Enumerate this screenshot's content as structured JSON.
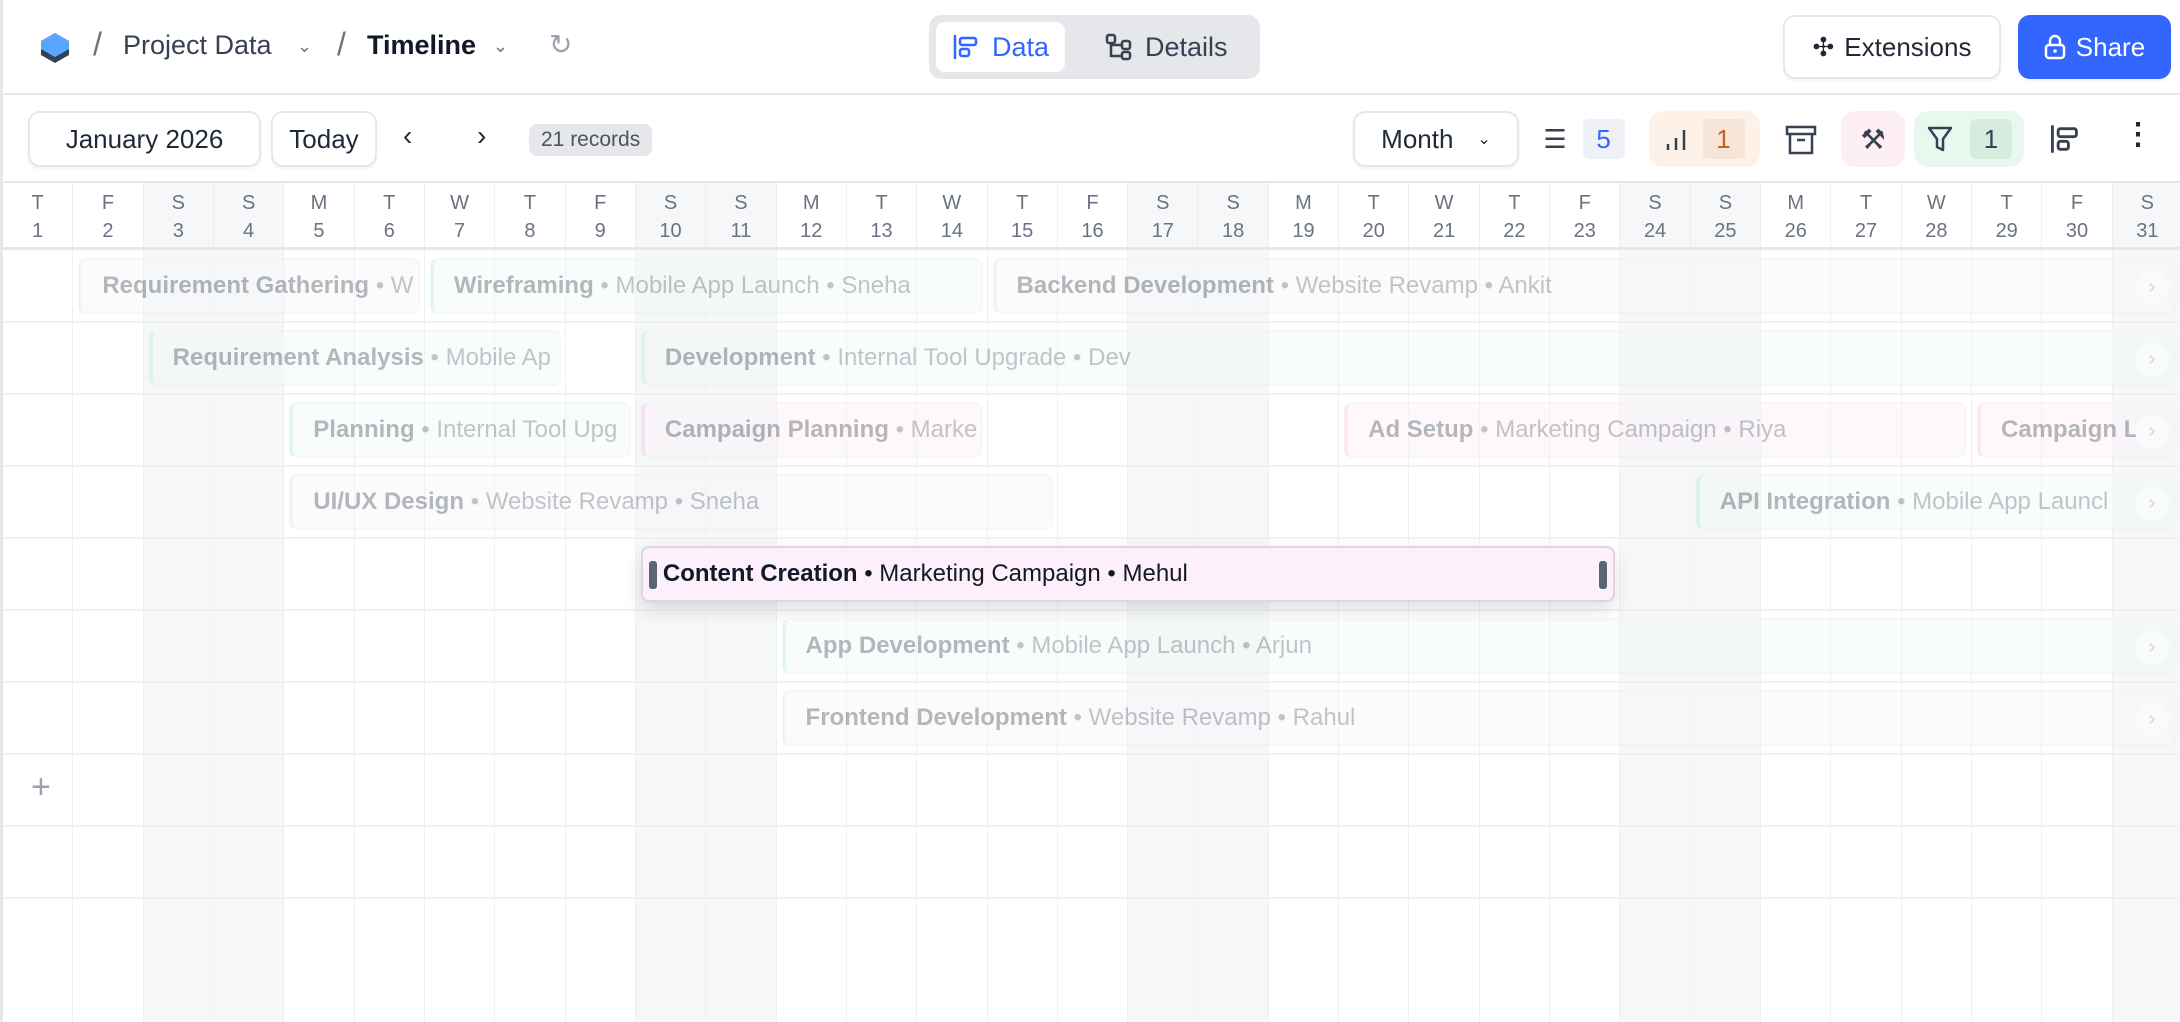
{
  "header": {
    "breadcrumb": [
      "Project Data",
      "Timeline"
    ],
    "views": [
      {
        "label": "Data",
        "active": true
      },
      {
        "label": "Details",
        "active": false
      }
    ],
    "extensions_label": "Extensions",
    "share_label": "Share"
  },
  "toolbar": {
    "period": "January 2026",
    "today": "Today",
    "records": "21 records",
    "range": "Month",
    "fields_count": "5",
    "group_count": "1",
    "filter_count": "1"
  },
  "colors": {
    "accent": "#3366ff",
    "orange": "#c2631f",
    "weekend": "#f6f7f9"
  },
  "days": [
    [
      "T",
      "1"
    ],
    [
      "F",
      "2"
    ],
    [
      "S",
      "3"
    ],
    [
      "S",
      "4"
    ],
    [
      "M",
      "5"
    ],
    [
      "T",
      "6"
    ],
    [
      "W",
      "7"
    ],
    [
      "T",
      "8"
    ],
    [
      "F",
      "9"
    ],
    [
      "S",
      "10"
    ],
    [
      "S",
      "11"
    ],
    [
      "M",
      "12"
    ],
    [
      "T",
      "13"
    ],
    [
      "W",
      "14"
    ],
    [
      "T",
      "15"
    ],
    [
      "F",
      "16"
    ],
    [
      "S",
      "17"
    ],
    [
      "S",
      "18"
    ],
    [
      "M",
      "19"
    ],
    [
      "T",
      "20"
    ],
    [
      "W",
      "21"
    ],
    [
      "T",
      "22"
    ],
    [
      "F",
      "23"
    ],
    [
      "S",
      "24"
    ],
    [
      "S",
      "25"
    ],
    [
      "M",
      "26"
    ],
    [
      "T",
      "27"
    ],
    [
      "W",
      "28"
    ],
    [
      "T",
      "29"
    ],
    [
      "F",
      "30"
    ],
    [
      "S",
      "31"
    ]
  ],
  "bars": [
    {
      "row": 0,
      "start": 2,
      "end": 6,
      "title": "Requirement Gathering",
      "meta": "• W",
      "tone": "gray"
    },
    {
      "row": 0,
      "start": 7,
      "end": 14,
      "title": "Wireframing",
      "meta": "• Mobile App Launch • Sneha",
      "tone": "green"
    },
    {
      "row": 0,
      "start": 15,
      "end": 31,
      "title": "Backend Development",
      "meta": "• Website Revamp • Ankit",
      "tone": "gray",
      "continues": true
    },
    {
      "row": 1,
      "start": 3,
      "end": 8,
      "title": "Requirement Analysis",
      "meta": "• Mobile Ap",
      "tone": "green"
    },
    {
      "row": 1,
      "start": 10,
      "end": 31,
      "title": "Development",
      "meta": "• Internal Tool Upgrade • Dev",
      "tone": "green",
      "continues": true
    },
    {
      "row": 2,
      "start": 5,
      "end": 9,
      "title": "Planning",
      "meta": "• Internal Tool Upg",
      "tone": "green"
    },
    {
      "row": 2,
      "start": 10,
      "end": 14,
      "title": "Campaign Planning",
      "meta": "• Marke",
      "tone": "pink"
    },
    {
      "row": 2,
      "start": 20,
      "end": 28,
      "title": "Ad Setup",
      "meta": "• Marketing Campaign • Riya",
      "tone": "pink"
    },
    {
      "row": 2,
      "start": 29,
      "end": 31,
      "title": "Campaign L",
      "meta": "",
      "tone": "pink",
      "continues": true
    },
    {
      "row": 3,
      "start": 5,
      "end": 15,
      "title": "UI/UX Design",
      "meta": "• Website Revamp • Sneha",
      "tone": "gray"
    },
    {
      "row": 3,
      "start": 25,
      "end": 31,
      "title": "API Integration",
      "meta": "• Mobile App Launcl",
      "tone": "green",
      "continues": true
    },
    {
      "row": 4,
      "start": 10,
      "end": 23,
      "title": "Content Creation",
      "meta": "• Marketing Campaign • Mehul",
      "tone": "pink",
      "active": true
    },
    {
      "row": 5,
      "start": 12,
      "end": 31,
      "title": "App Development",
      "meta": "• Mobile App Launch • Arjun",
      "tone": "green",
      "continues": true
    },
    {
      "row": 6,
      "start": 12,
      "end": 31,
      "title": "Frontend Development",
      "meta": "• Website Revamp • Rahul",
      "tone": "gray",
      "continues": true
    }
  ],
  "add_row": "+"
}
